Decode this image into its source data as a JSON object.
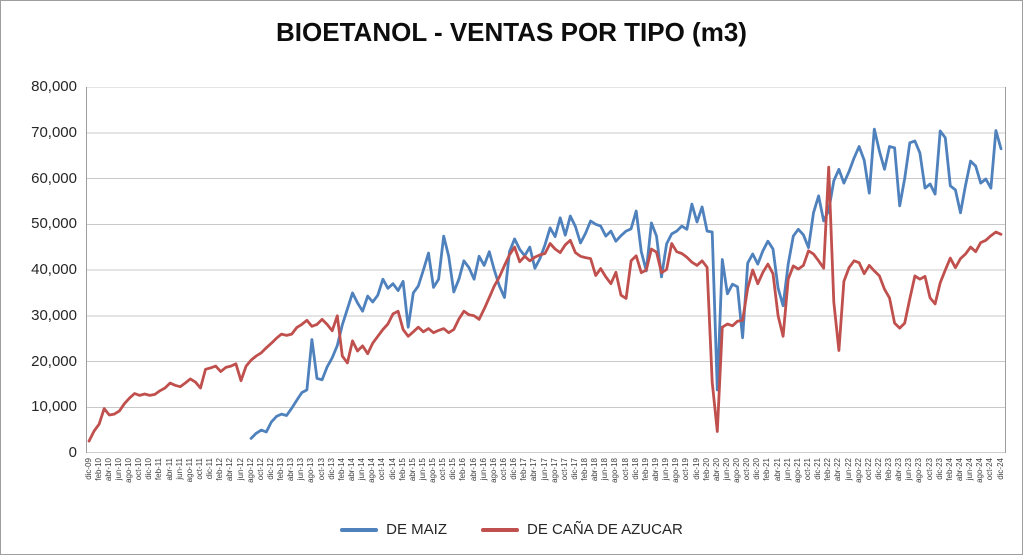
{
  "chart_data": {
    "type": "line",
    "title": "BIOETANOL - VENTAS POR TIPO (m3)",
    "xlabel": "",
    "ylabel": "",
    "ylim": [
      0,
      80000
    ],
    "grid": true,
    "legend_position": "bottom",
    "y_ticks": [
      "0",
      "10,000",
      "20,000",
      "30,000",
      "40,000",
      "50,000",
      "60,000",
      "70,000",
      "80,000"
    ],
    "x_tick_every": 2,
    "months": [
      "dic-09",
      "ene-10",
      "feb-10",
      "mar-10",
      "abr-10",
      "may-10",
      "jun-10",
      "jul-10",
      "ago-10",
      "sep-10",
      "oct-10",
      "nov-10",
      "dic-10",
      "ene-11",
      "feb-11",
      "mar-11",
      "abr-11",
      "may-11",
      "jun-11",
      "jul-11",
      "ago-11",
      "sep-11",
      "oct-11",
      "nov-11",
      "dic-11",
      "ene-12",
      "feb-12",
      "mar-12",
      "abr-12",
      "may-12",
      "jun-12",
      "jul-12",
      "ago-12",
      "sep-12",
      "oct-12",
      "nov-12",
      "dic-12",
      "ene-13",
      "feb-13",
      "mar-13",
      "abr-13",
      "may-13",
      "jun-13",
      "jul-13",
      "ago-13",
      "sep-13",
      "oct-13",
      "nov-13",
      "dic-13",
      "ene-14",
      "feb-14",
      "mar-14",
      "abr-14",
      "may-14",
      "jun-14",
      "jul-14",
      "ago-14",
      "sep-14",
      "oct-14",
      "nov-14",
      "dic-14",
      "ene-15",
      "feb-15",
      "mar-15",
      "abr-15",
      "may-15",
      "jun-15",
      "jul-15",
      "ago-15",
      "sep-15",
      "oct-15",
      "nov-15",
      "dic-15",
      "ene-16",
      "feb-16",
      "mar-16",
      "abr-16",
      "may-16",
      "jun-16",
      "jul-16",
      "ago-16",
      "sep-16",
      "oct-16",
      "nov-16",
      "dic-16",
      "ene-17",
      "feb-17",
      "mar-17",
      "abr-17",
      "may-17",
      "jun-17",
      "jul-17",
      "ago-17",
      "sep-17",
      "oct-17",
      "nov-17",
      "dic-17",
      "ene-18",
      "feb-18",
      "mar-18",
      "abr-18",
      "may-18",
      "jun-18",
      "jul-18",
      "ago-18",
      "sep-18",
      "oct-18",
      "nov-18",
      "dic-18",
      "ene-19",
      "feb-19",
      "mar-19",
      "abr-19",
      "may-19",
      "jun-19",
      "jul-19",
      "ago-19",
      "sep-19",
      "oct-19",
      "nov-19",
      "dic-19",
      "ene-20",
      "feb-20",
      "mar-20",
      "abr-20",
      "may-20",
      "jun-20",
      "jul-20",
      "ago-20",
      "sep-20",
      "oct-20",
      "nov-20",
      "dic-20",
      "ene-21",
      "feb-21",
      "mar-21",
      "abr-21",
      "may-21",
      "jun-21",
      "jul-21",
      "ago-21",
      "sep-21",
      "oct-21",
      "nov-21",
      "dic-21",
      "ene-22",
      "feb-22",
      "mar-22",
      "abr-22",
      "may-22",
      "jun-22",
      "jul-22",
      "ago-22",
      "sep-22",
      "oct-22",
      "nov-22",
      "dic-22",
      "ene-23",
      "feb-23",
      "mar-23",
      "abr-23",
      "may-23",
      "jun-23",
      "jul-23",
      "ago-23",
      "sep-23",
      "oct-23",
      "nov-23",
      "dic-23",
      "ene-24",
      "feb-24",
      "mar-24",
      "abr-24",
      "may-24",
      "jun-24",
      "jul-24",
      "ago-24",
      "sep-24",
      "oct-24",
      "nov-24",
      "dic-24"
    ],
    "series": [
      {
        "name": "DE MAIZ",
        "color": "#4F81BD",
        "values": [
          null,
          null,
          null,
          null,
          null,
          null,
          null,
          null,
          null,
          null,
          null,
          null,
          null,
          null,
          null,
          null,
          null,
          null,
          null,
          null,
          null,
          null,
          null,
          null,
          null,
          null,
          null,
          null,
          null,
          null,
          null,
          null,
          3200,
          4300,
          5000,
          4600,
          6800,
          8000,
          8500,
          8200,
          9800,
          11500,
          13200,
          13800,
          24800,
          16300,
          16000,
          18800,
          20800,
          23500,
          28000,
          31500,
          35000,
          32800,
          31000,
          34300,
          33000,
          34500,
          38000,
          36000,
          37000,
          35500,
          37500,
          27500,
          35000,
          36500,
          40000,
          43700,
          36200,
          38000,
          47400,
          43000,
          35200,
          38000,
          42000,
          40500,
          38000,
          43000,
          41000,
          44000,
          40000,
          36500,
          34000,
          44000,
          46800,
          44500,
          43100,
          45000,
          40400,
          42500,
          45500,
          49200,
          47300,
          51400,
          47600,
          51800,
          49500,
          45900,
          48000,
          50700,
          50000,
          49600,
          47400,
          48500,
          46300,
          47500,
          48500,
          49000,
          52900,
          44000,
          39800,
          50300,
          47400,
          38500,
          45700,
          47900,
          48500,
          49600,
          48900,
          54400,
          50500,
          53800,
          48500,
          48300,
          13800,
          42300,
          34800,
          36900,
          36300,
          25200,
          41500,
          43500,
          41300,
          44200,
          46300,
          44600,
          36000,
          32200,
          41300,
          47400,
          48900,
          47700,
          44900,
          52500,
          56200,
          50700,
          53000,
          59500,
          62000,
          59000,
          61500,
          64500,
          67000,
          64000,
          56800,
          70800,
          66000,
          62000,
          67000,
          66700,
          54000,
          60000,
          67800,
          68200,
          65600,
          57900,
          58800,
          56600,
          70400,
          68900,
          58400,
          57500,
          52500,
          58500,
          63800,
          62700,
          59000,
          59900,
          57900,
          70500,
          66500
        ]
      },
      {
        "name": "DE CAÑA DE AZUCAR",
        "color": "#C0504D",
        "values": [
          2600,
          4800,
          6300,
          9700,
          8300,
          8500,
          9200,
          10800,
          12000,
          13000,
          12600,
          12900,
          12600,
          12800,
          13600,
          14200,
          15300,
          14800,
          14500,
          15300,
          16200,
          15500,
          14200,
          18300,
          18600,
          19000,
          17800,
          18700,
          19000,
          19500,
          15800,
          19000,
          20300,
          21200,
          21900,
          23000,
          24000,
          25100,
          26000,
          25700,
          26000,
          27400,
          28100,
          29000,
          27700,
          28100,
          29200,
          28100,
          26700,
          30000,
          21200,
          19700,
          24500,
          22300,
          23400,
          21700,
          24000,
          25500,
          27000,
          28200,
          30400,
          31000,
          27000,
          25500,
          26500,
          27500,
          26500,
          27200,
          26300,
          26800,
          27200,
          26300,
          27000,
          29300,
          31000,
          30200,
          30000,
          29200,
          31500,
          34000,
          36500,
          38500,
          41000,
          43300,
          45000,
          41800,
          43000,
          42000,
          42800,
          43300,
          43600,
          45800,
          44600,
          43800,
          45500,
          46500,
          43800,
          43000,
          42700,
          42500,
          38800,
          40300,
          38500,
          37000,
          39500,
          34500,
          33800,
          42000,
          43100,
          39400,
          40000,
          44600,
          43900,
          39400,
          40100,
          45800,
          44000,
          43600,
          42800,
          41700,
          41000,
          42000,
          40600,
          15500,
          4700,
          27500,
          28200,
          27800,
          28800,
          29000,
          36000,
          40000,
          37000,
          39500,
          41300,
          39200,
          30000,
          25500,
          38000,
          40900,
          40200,
          41000,
          44200,
          43500,
          42000,
          40400,
          62500,
          33000,
          22400,
          37500,
          40500,
          42000,
          41600,
          39200,
          41000,
          39800,
          38700,
          35800,
          33900,
          28400,
          27300,
          28400,
          33700,
          38700,
          38000,
          38600,
          33900,
          32600,
          37200,
          40000,
          42600,
          40500,
          42500,
          43500,
          45000,
          44000,
          46000,
          46500,
          47500,
          48300,
          47800
        ]
      }
    ],
    "colors": {
      "gridline": "#c9c9c9",
      "plot_border": "#9e9e9e",
      "title_text": "#0d0d0d",
      "axis_text": "#262626"
    }
  }
}
